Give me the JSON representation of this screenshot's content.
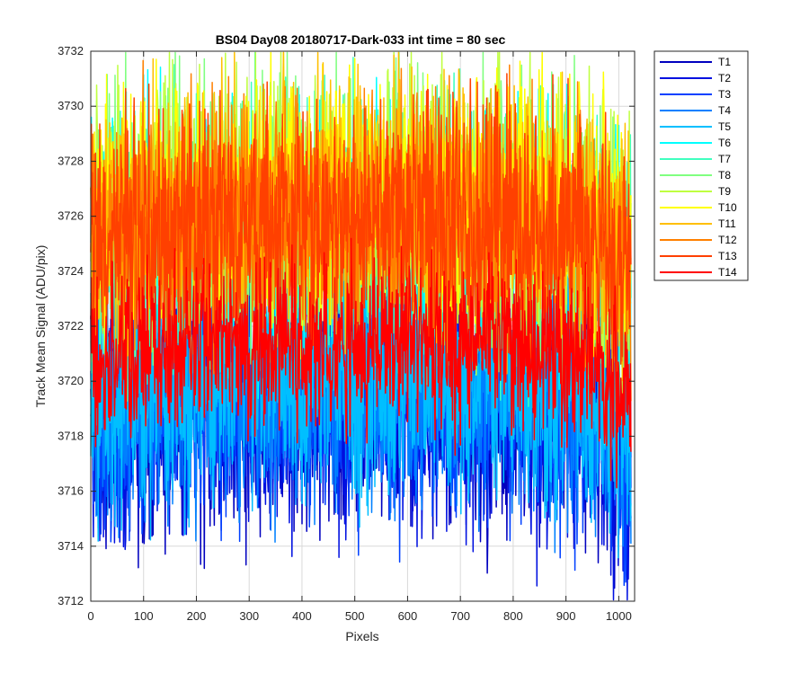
{
  "chart_data": {
    "type": "line",
    "title": "BS04 Day08 20180717-Dark-033 int time = 80 sec",
    "xlabel": "Pixels",
    "ylabel": "Track Mean Signal (ADU/pix)",
    "xlim": [
      0,
      1030
    ],
    "ylim": [
      3712,
      3732
    ],
    "xticks": [
      0,
      100,
      200,
      300,
      400,
      500,
      600,
      700,
      800,
      900,
      1000
    ],
    "yticks": [
      3712,
      3714,
      3716,
      3718,
      3720,
      3722,
      3724,
      3726,
      3728,
      3730,
      3732
    ],
    "grid": true,
    "legend_position": "outside-top-right",
    "n_points_per_series": 1024,
    "series": [
      {
        "name": "T1",
        "color": "#0000bf",
        "mean": 3719.0,
        "noise_amplitude": 2.3
      },
      {
        "name": "T2",
        "color": "#0010e0",
        "mean": 3719.1,
        "noise_amplitude": 2.3
      },
      {
        "name": "T3",
        "color": "#0040ff",
        "mean": 3719.2,
        "noise_amplitude": 2.2
      },
      {
        "name": "T4",
        "color": "#0080ff",
        "mean": 3719.5,
        "noise_amplitude": 2.2
      },
      {
        "name": "T5",
        "color": "#00bfff",
        "mean": 3720.0,
        "noise_amplitude": 2.2
      },
      {
        "name": "T6",
        "color": "#00ffff",
        "mean": 3725.3,
        "noise_amplitude": 2.4
      },
      {
        "name": "T7",
        "color": "#40ffbf",
        "mean": 3725.6,
        "noise_amplitude": 2.4
      },
      {
        "name": "T8",
        "color": "#80ff80",
        "mean": 3726.0,
        "noise_amplitude": 2.4
      },
      {
        "name": "T9",
        "color": "#bfff40",
        "mean": 3726.2,
        "noise_amplitude": 2.4
      },
      {
        "name": "T10",
        "color": "#ffff00",
        "mean": 3726.3,
        "noise_amplitude": 2.3
      },
      {
        "name": "T11",
        "color": "#ffbf00",
        "mean": 3726.0,
        "noise_amplitude": 2.3
      },
      {
        "name": "T12",
        "color": "#ff8000",
        "mean": 3725.8,
        "noise_amplitude": 2.2
      },
      {
        "name": "T13",
        "color": "#ff4000",
        "mean": 3725.4,
        "noise_amplitude": 2.2
      },
      {
        "name": "T14",
        "color": "#ff0000",
        "mean": 3721.2,
        "noise_amplitude": 1.5
      }
    ]
  }
}
